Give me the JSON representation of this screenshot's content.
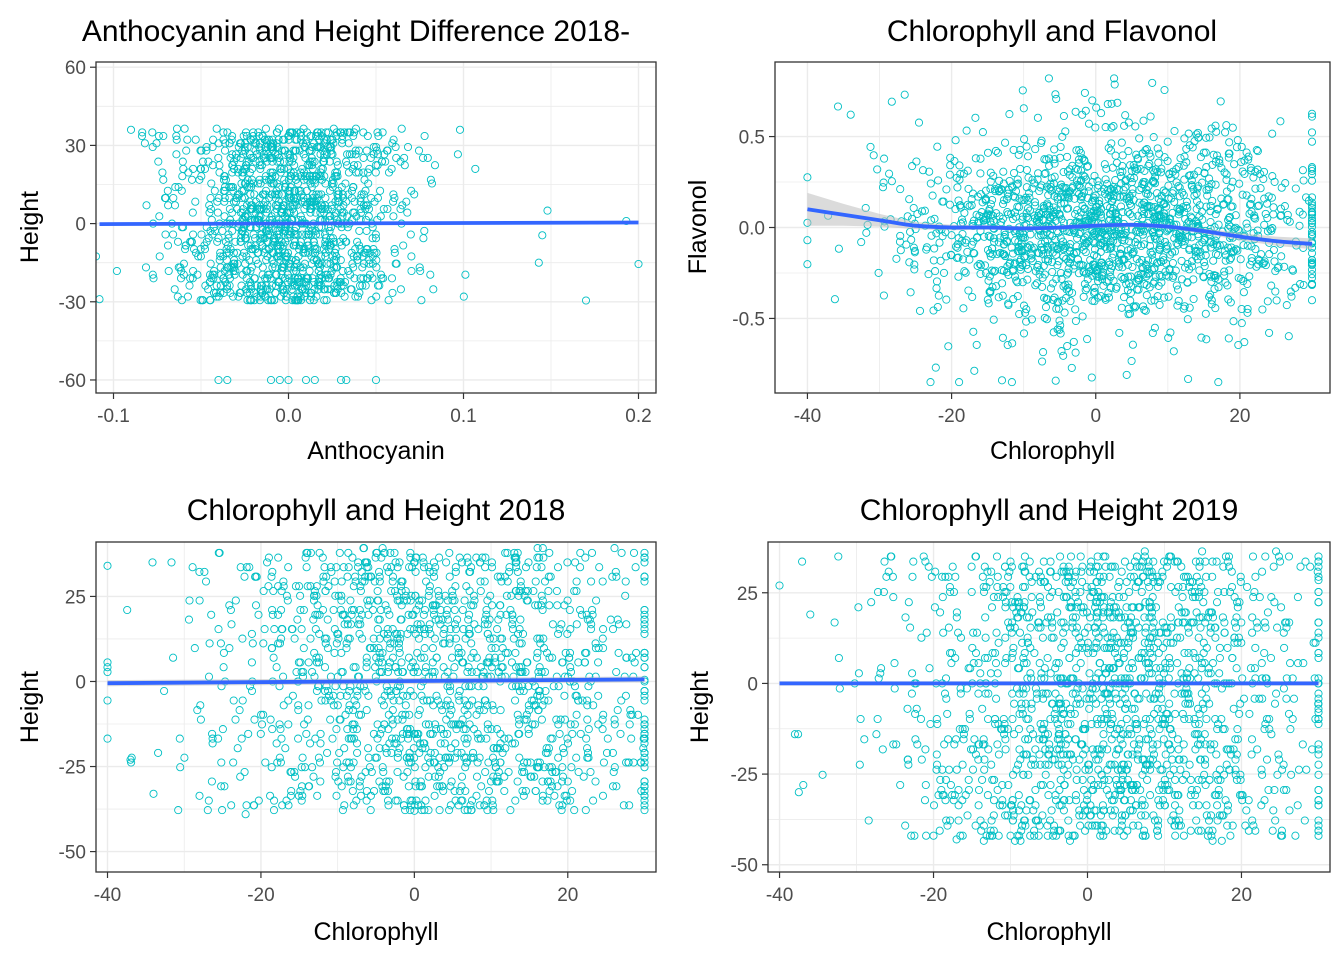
{
  "colors": {
    "points": "#00BFC4",
    "fit_line": "#3366FF",
    "confidence_band": "#BEBEBE",
    "panel_border": "#333333",
    "grid": "#EBEBEB",
    "text": "#000000",
    "tick_label": "#4D4D4D"
  },
  "chart_data": [
    {
      "type": "scatter",
      "title": "Anthocyanin and Height Difference 2018-",
      "xlabel": "Anthocyanin",
      "ylabel": "Height",
      "xlim": [
        -0.11,
        0.21
      ],
      "ylim": [
        -65,
        62
      ],
      "x_ticks": [
        -0.1,
        0.0,
        0.1,
        0.2
      ],
      "x_tick_labels": [
        "-0.1",
        "0.0",
        "0.1",
        "0.2"
      ],
      "y_ticks": [
        -60,
        -30,
        0,
        30,
        60
      ],
      "y_tick_labels": [
        "-60",
        "-30",
        "0",
        "30",
        "60"
      ],
      "grid": true,
      "smooth": {
        "method": "linear",
        "points": [
          [
            -0.108,
            -0.2
          ],
          [
            0.2,
            0.4
          ]
        ],
        "band_halfwidth": 0.6
      },
      "sample_points": {
        "n": 1300,
        "x_center": 0.0,
        "x_spread": 0.032,
        "x_min": -0.11,
        "x_max": 0.2,
        "y_min": -30,
        "y_max": 36,
        "seed": 11
      },
      "extra_points": [
        [
          -0.04,
          -60
        ],
        [
          -0.035,
          -60
        ],
        [
          -0.01,
          -60
        ],
        [
          -0.005,
          -60
        ],
        [
          0.0,
          -60
        ],
        [
          0.01,
          -60
        ],
        [
          0.015,
          -60
        ],
        [
          0.03,
          -60
        ],
        [
          0.033,
          -60
        ],
        [
          0.05,
          -60
        ],
        [
          0.2,
          -15.5
        ],
        [
          0.193,
          1
        ],
        [
          0.17,
          -29.5
        ],
        [
          0.148,
          5
        ],
        [
          0.145,
          -4.5
        ],
        [
          0.143,
          -15
        ],
        [
          0.098,
          36
        ],
        [
          -0.09,
          36
        ],
        [
          -0.108,
          -29
        ]
      ]
    },
    {
      "type": "scatter",
      "title": "Chlorophyll and Flavonol",
      "xlabel": "Chlorophyll",
      "ylabel": "Flavonol",
      "xlim": [
        -44.5,
        32.5
      ],
      "ylim": [
        -0.91,
        0.91
      ],
      "x_ticks": [
        -40,
        -20,
        0,
        20
      ],
      "x_tick_labels": [
        "-40",
        "-20",
        "0",
        "20"
      ],
      "y_ticks": [
        -0.5,
        0.0,
        0.5
      ],
      "y_tick_labels": [
        "-0.5",
        "0.0",
        "0.5"
      ],
      "grid": true,
      "smooth": {
        "method": "loess",
        "points": [
          [
            -40,
            0.1
          ],
          [
            -35,
            0.07
          ],
          [
            -30,
            0.04
          ],
          [
            -25,
            0.01
          ],
          [
            -20,
            0.0
          ],
          [
            -15,
            0.0
          ],
          [
            -10,
            -0.005
          ],
          [
            -5,
            0.0
          ],
          [
            0,
            0.01
          ],
          [
            5,
            0.015
          ],
          [
            10,
            0.005
          ],
          [
            15,
            -0.02
          ],
          [
            20,
            -0.05
          ],
          [
            25,
            -0.075
          ],
          [
            30,
            -0.09
          ]
        ],
        "band_halfwidths": [
          0.09,
          0.06,
          0.035,
          0.02,
          0.015,
          0.012,
          0.012,
          0.012,
          0.012,
          0.012,
          0.012,
          0.015,
          0.02,
          0.025,
          0.03
        ]
      },
      "sample_points": {
        "n": 1700,
        "x_center": 2.0,
        "x_spread": 14.0,
        "x_min": -40,
        "x_max": 30,
        "y_spread": 0.27,
        "y_min": -0.85,
        "y_max": 0.82,
        "seed": 29
      },
      "extra_points": [
        [
          -40,
          -0.07
        ],
        [
          -6.5,
          0.82
        ],
        [
          -1.5,
          0.74
        ],
        [
          -26.5,
          0.73
        ],
        [
          -34,
          0.62
        ],
        [
          17,
          -0.85
        ],
        [
          -13,
          -0.84
        ],
        [
          30,
          -0.4
        ]
      ]
    },
    {
      "type": "scatter",
      "title": "Chlorophyll and Height 2018",
      "xlabel": "Chlorophyll",
      "ylabel": "Height",
      "xlim": [
        -41.5,
        31.5
      ],
      "ylim": [
        -56,
        41
      ],
      "x_ticks": [
        -40,
        -20,
        0,
        20
      ],
      "x_tick_labels": [
        "-40",
        "-20",
        "0",
        "20"
      ],
      "y_ticks": [
        -50,
        -25,
        0,
        25
      ],
      "y_tick_labels": [
        "-50",
        "-25",
        "0",
        "25"
      ],
      "grid": true,
      "smooth": {
        "method": "linear",
        "points": [
          [
            -40,
            -0.5
          ],
          [
            30,
            0.6
          ]
        ],
        "band_halfwidth": 0.9
      },
      "sample_points": {
        "n": 1450,
        "x_center": 3.0,
        "x_spread": 15.0,
        "x_min": -40,
        "x_max": 30,
        "y_min": -38,
        "y_max": 39,
        "seed": 47
      },
      "extra_points": [
        [
          -40,
          34
        ],
        [
          -34,
          -33
        ],
        [
          -37,
          -23
        ],
        [
          30,
          7
        ],
        [
          30,
          0.5
        ],
        [
          -22,
          -39
        ],
        [
          0,
          -38
        ]
      ]
    },
    {
      "type": "scatter",
      "title": "Chlorophyll and Height 2019",
      "xlabel": "Chlorophyll",
      "ylabel": "Height",
      "xlim": [
        -41.5,
        31.5
      ],
      "ylim": [
        -52,
        39
      ],
      "x_ticks": [
        -40,
        -20,
        0,
        20
      ],
      "x_tick_labels": [
        "-40",
        "-20",
        "0",
        "20"
      ],
      "y_ticks": [
        -50,
        -25,
        0,
        25
      ],
      "y_tick_labels": [
        "-50",
        "-25",
        "0",
        "25"
      ],
      "grid": true,
      "smooth": {
        "method": "linear",
        "points": [
          [
            -40,
            0
          ],
          [
            30,
            0
          ]
        ],
        "band_halfwidth": 0.6
      },
      "sample_points": {
        "n": 1650,
        "x_center": 3.0,
        "x_spread": 14.0,
        "x_min": -40,
        "x_max": 30,
        "y_min": -43,
        "y_max": 36,
        "seed": 83
      },
      "extra_points": [
        [
          -40,
          27
        ],
        [
          -38,
          -14
        ],
        [
          -37.5,
          -30
        ],
        [
          -36,
          19
        ],
        [
          30,
          28.5
        ],
        [
          30,
          -8
        ],
        [
          27,
          -42
        ],
        [
          -20,
          -42
        ],
        [
          -17,
          -43
        ]
      ]
    }
  ]
}
